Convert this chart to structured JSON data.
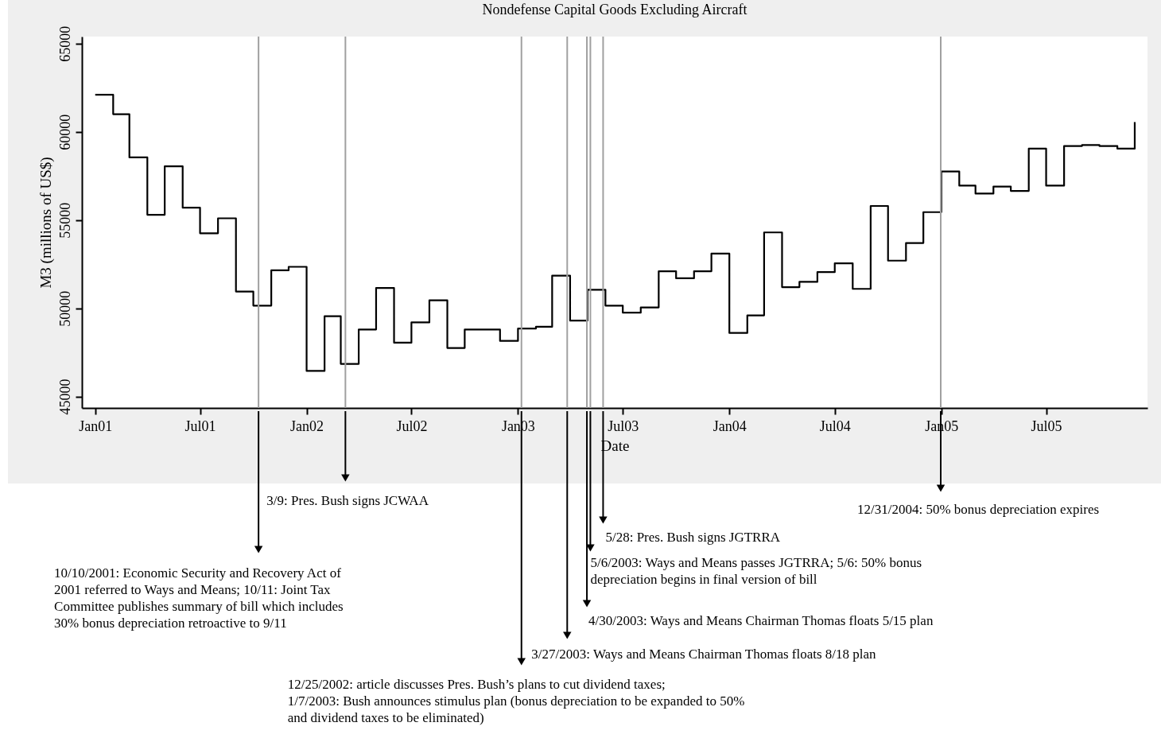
{
  "chart_data": {
    "type": "step",
    "title": "Nondefense Capital Goods Excluding Aircraft",
    "xlabel": "Date",
    "ylabel": "M3 (millions of US$)",
    "x": [
      "2001-01",
      "2001-02",
      "2001-03",
      "2001-04",
      "2001-05",
      "2001-06",
      "2001-07",
      "2001-08",
      "2001-09",
      "2001-10",
      "2001-11",
      "2001-12",
      "2002-01",
      "2002-02",
      "2002-03",
      "2002-04",
      "2002-05",
      "2002-06",
      "2002-07",
      "2002-08",
      "2002-09",
      "2002-10",
      "2002-11",
      "2002-12",
      "2003-01",
      "2003-02",
      "2003-03",
      "2003-04",
      "2003-05",
      "2003-06",
      "2003-07",
      "2003-08",
      "2003-09",
      "2003-10",
      "2003-11",
      "2003-12",
      "2004-01",
      "2004-02",
      "2004-03",
      "2004-04",
      "2004-05",
      "2004-06",
      "2004-07",
      "2004-08",
      "2004-09",
      "2004-10",
      "2004-11",
      "2004-12",
      "2005-01",
      "2005-02",
      "2005-03",
      "2005-04",
      "2005-05",
      "2005-06",
      "2005-07",
      "2005-08",
      "2005-09",
      "2005-10",
      "2005-11",
      "2005-12"
    ],
    "series": [
      {
        "color": "#000000",
        "values": [
          62100,
          61000,
          58550,
          55300,
          58050,
          55700,
          54250,
          55100,
          50950,
          50150,
          52150,
          52350,
          46450,
          49550,
          46850,
          48800,
          51150,
          48050,
          49200,
          50450,
          47750,
          48800,
          48800,
          48150,
          48850,
          48950,
          51850,
          49300,
          51050,
          50150,
          49750,
          50050,
          52100,
          51700,
          52100,
          53100,
          48600,
          49600,
          54300,
          51200,
          51500,
          52050,
          52550,
          51100,
          55800,
          52700,
          53700,
          55450,
          57750,
          56950,
          56500,
          56900,
          56650,
          59050,
          56950,
          59200,
          59250,
          59200,
          59050,
          60550
        ]
      }
    ],
    "xlim": [
      "2000-12-09",
      "2005-12-23"
    ],
    "xticks": [
      {
        "value": "2001-01",
        "label": "Jan01"
      },
      {
        "value": "2001-07",
        "label": "Jul01"
      },
      {
        "value": "2002-01",
        "label": "Jan02"
      },
      {
        "value": "2002-07",
        "label": "Jul02"
      },
      {
        "value": "2003-01",
        "label": "Jan03"
      },
      {
        "value": "2003-07",
        "label": "Jul03"
      },
      {
        "value": "2004-01",
        "label": "Jan04"
      },
      {
        "value": "2004-07",
        "label": "Jul04"
      },
      {
        "value": "2005-01",
        "label": "Jan05"
      },
      {
        "value": "2005-07",
        "label": "Jul05"
      }
    ],
    "ylim": [
      44350,
      65400
    ],
    "yticks": [
      45000,
      50000,
      55000,
      60000,
      65000
    ],
    "ref_lines": [
      {
        "axis": "x",
        "value": "2001-10-10",
        "color": "#a0a0a0",
        "label": "10/10/2001: Economic Security and Recovery Act of 2001 referred to Ways and Means; 10/11: Joint Tax Committee publishes summary of bill which includes 30% bonus depreciation retroactive to 9/11"
      },
      {
        "axis": "x",
        "value": "2002-03-09",
        "color": "#a0a0a0",
        "label": "3/9: Pres. Bush signs JCWAA"
      },
      {
        "axis": "x",
        "value": "2003-01-07",
        "color": "#a0a0a0",
        "label": "12/25/2002: article discusses Pres. Bush’s plans to cut dividend taxes; 1/7/2003: Bush announces stimulus plan (bonus depreciation to be expanded to 50% and dividend taxes to be eliminated)"
      },
      {
        "axis": "x",
        "value": "2003-03-27",
        "color": "#a0a0a0",
        "label": "3/27/2003: Ways and Means Chairman Thomas floats 8/18 plan"
      },
      {
        "axis": "x",
        "value": "2003-04-30",
        "color": "#a0a0a0",
        "label": "4/30/2003: Ways and Means Chairman Thomas floats 5/15 plan"
      },
      {
        "axis": "x",
        "value": "2003-05-06",
        "color": "#a0a0a0",
        "label": "5/6/2003: Ways and Means passes JGTRRA; 5/6: 50% bonus depreciation begins in final version of bill"
      },
      {
        "axis": "x",
        "value": "2003-05-28",
        "color": "#a0a0a0",
        "label": "5/28: Pres. Bush signs JGTRRA"
      },
      {
        "axis": "x",
        "value": "2004-12-31",
        "color": "#a0a0a0",
        "label": "12/31/2004: 50% bonus depreciation expires"
      }
    ]
  }
}
